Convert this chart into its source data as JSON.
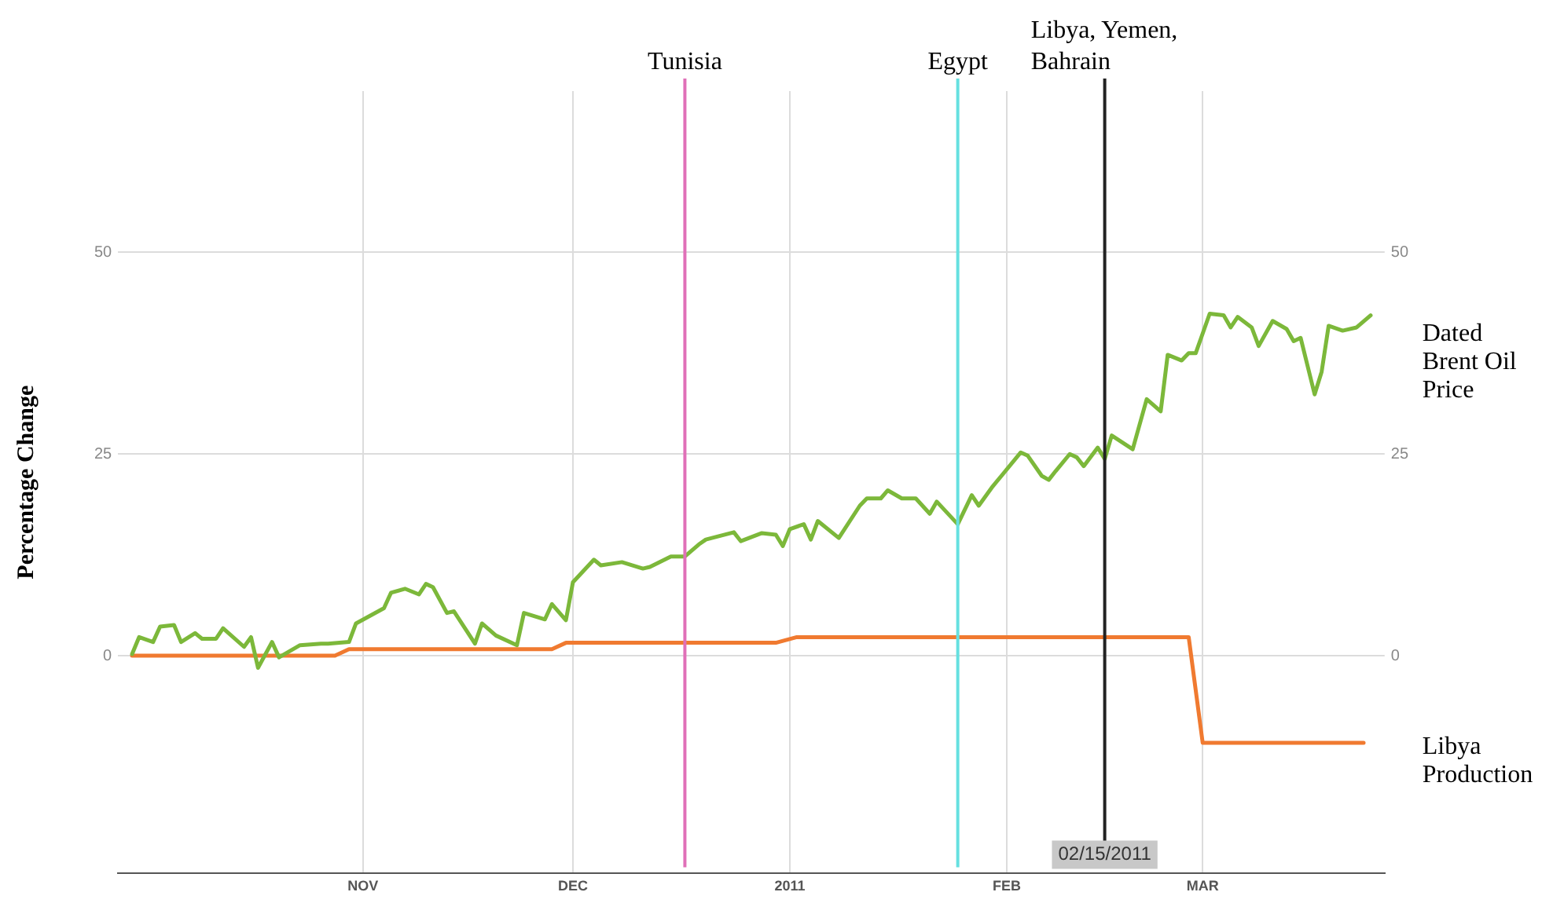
{
  "chart_data": {
    "type": "line",
    "ylabel": "Percentage Change",
    "xlim": [
      "2010-09-27",
      "2011-03-27"
    ],
    "xticks": [
      {
        "value": "2010-11-01",
        "label": "NOV"
      },
      {
        "value": "2010-12-01",
        "label": "DEC"
      },
      {
        "value": "2011-01-01",
        "label": "2011"
      },
      {
        "value": "2011-02-01",
        "label": "FEB"
      },
      {
        "value": "2011-03-01",
        "label": "MAR"
      }
    ],
    "ylim": [
      -27,
      70
    ],
    "yticks": [
      0,
      25,
      50
    ],
    "y2lim": [
      -27,
      70
    ],
    "y2ticks": [
      0,
      25,
      50
    ],
    "grid": true,
    "legend": false,
    "marker": "none",
    "line_style": "solid",
    "series": [
      {
        "name": "Dated Brent Oil Price",
        "color": "#7cb83a",
        "x": [
          "2010-09-29",
          "2010-09-30",
          "2010-10-02",
          "2010-10-03",
          "2010-10-05",
          "2010-10-06",
          "2010-10-08",
          "2010-10-09",
          "2010-10-11",
          "2010-10-12",
          "2010-10-15",
          "2010-10-16",
          "2010-10-17",
          "2010-10-19",
          "2010-10-20",
          "2010-10-23",
          "2010-10-26",
          "2010-10-27",
          "2010-10-30",
          "2010-10-31",
          "2010-11-04",
          "2010-11-05",
          "2010-11-07",
          "2010-11-09",
          "2010-11-10",
          "2010-11-11",
          "2010-11-13",
          "2010-11-14",
          "2010-11-17",
          "2010-11-18",
          "2010-11-20",
          "2010-11-23",
          "2010-11-24",
          "2010-11-27",
          "2010-11-28",
          "2010-11-30",
          "2010-12-01",
          "2010-12-04",
          "2010-12-05",
          "2010-12-08",
          "2010-12-11",
          "2010-12-12",
          "2010-12-15",
          "2010-12-17",
          "2010-12-19",
          "2010-12-20",
          "2010-12-24",
          "2010-12-25",
          "2010-12-28",
          "2010-12-30",
          "2010-12-31",
          "2011-01-01",
          "2011-01-03",
          "2011-01-04",
          "2011-01-05",
          "2011-01-08",
          "2011-01-11",
          "2011-01-12",
          "2011-01-14",
          "2011-01-15",
          "2011-01-17",
          "2011-01-19",
          "2011-01-21",
          "2011-01-22",
          "2011-01-25",
          "2011-01-27",
          "2011-01-28",
          "2011-01-30",
          "2011-02-03",
          "2011-02-04",
          "2011-02-06",
          "2011-02-07",
          "2011-02-08",
          "2011-02-10",
          "2011-02-11",
          "2011-02-12",
          "2011-02-14",
          "2011-02-15",
          "2011-02-16",
          "2011-02-19",
          "2011-02-21",
          "2011-02-23",
          "2011-02-24",
          "2011-02-26",
          "2011-02-27",
          "2011-02-28",
          "2011-03-02",
          "2011-03-04",
          "2011-03-05",
          "2011-03-06",
          "2011-03-08",
          "2011-03-09",
          "2011-03-11",
          "2011-03-13",
          "2011-03-14",
          "2011-03-15",
          "2011-03-17",
          "2011-03-18",
          "2011-03-19",
          "2011-03-21",
          "2011-03-23",
          "2011-03-25"
        ],
        "values": [
          0.2,
          2.3,
          1.7,
          3.6,
          3.8,
          1.7,
          2.8,
          2.1,
          2.1,
          3.4,
          1.1,
          2.3,
          -1.5,
          1.7,
          -0.2,
          1.3,
          1.5,
          1.5,
          1.7,
          4,
          5.9,
          7.8,
          8.3,
          7.6,
          8.9,
          8.5,
          5.3,
          5.5,
          1.5,
          4,
          2.5,
          1.3,
          5.3,
          4.5,
          6.4,
          4.4,
          9.1,
          11.9,
          11.2,
          11.6,
          10.8,
          11,
          12.3,
          12.3,
          13.8,
          14.4,
          15.3,
          14.2,
          15.2,
          15,
          13.6,
          15.7,
          16.3,
          14.4,
          16.7,
          14.6,
          18.6,
          19.5,
          19.5,
          20.5,
          19.5,
          19.5,
          17.6,
          19.1,
          16.3,
          19.9,
          18.6,
          21,
          25.2,
          24.8,
          22.3,
          21.8,
          22.9,
          25,
          24.6,
          23.5,
          25.8,
          24.4,
          27.3,
          25.6,
          31.8,
          30.3,
          37.3,
          36.6,
          37.5,
          37.5,
          42.4,
          42.2,
          40.7,
          42,
          40.7,
          38.4,
          41.5,
          40.5,
          39,
          39.4,
          32.4,
          35.2,
          40.9,
          40.3,
          40.7,
          42.2
        ]
      },
      {
        "name": "Libya Production",
        "color": "#f07a30",
        "x": [
          "2010-09-29",
          "2010-10-28",
          "2010-10-30",
          "2010-11-28",
          "2010-11-30",
          "2010-12-30",
          "2011-01-02",
          "2011-02-27",
          "2011-03-01",
          "2011-03-24"
        ],
        "values": [
          0,
          0,
          0.8,
          0.8,
          1.6,
          1.6,
          2.3,
          2.3,
          -10.8,
          -10.8
        ]
      }
    ],
    "ref_lines": [
      {
        "axis": "x",
        "value": "2010-12-17",
        "label": "Tunisia",
        "color": "#e070b8"
      },
      {
        "axis": "x",
        "value": "2011-01-25",
        "label": "Egypt",
        "color": "#66e0e0"
      },
      {
        "axis": "x",
        "value": "2011-02-15",
        "label": "Libya, Yemen, Bahrain",
        "color": "#222222"
      }
    ],
    "annotations": [
      {
        "text": "02/15/2011",
        "x": "2011-02-15"
      }
    ]
  }
}
